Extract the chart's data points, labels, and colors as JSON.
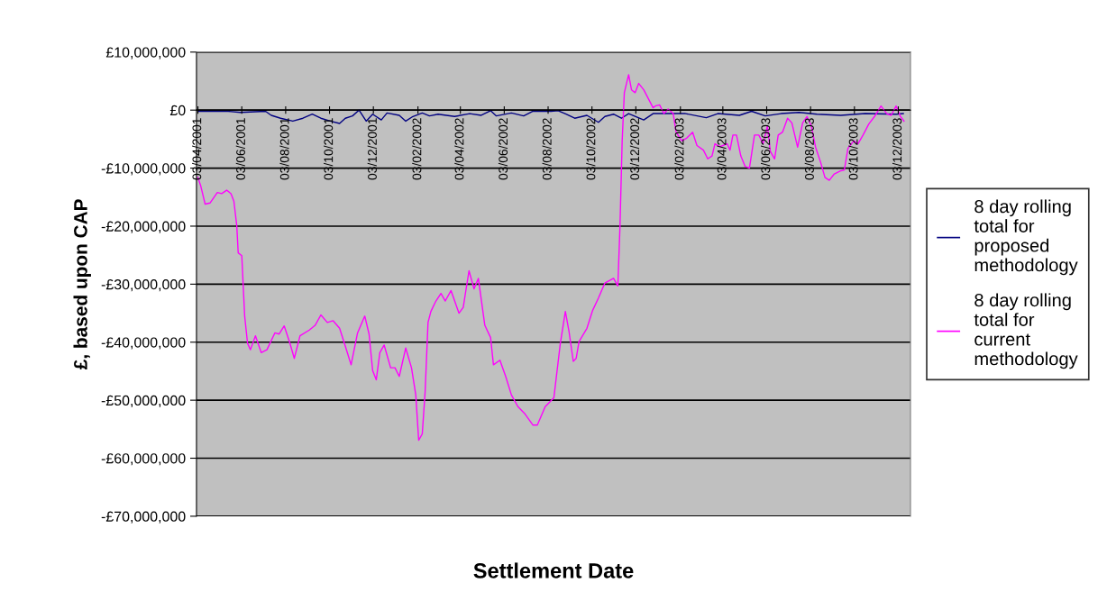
{
  "chart_data": {
    "type": "line",
    "xlabel": "Settlement Date",
    "ylabel": "£, based upon CAP",
    "legend": "right",
    "grid": "y",
    "line_style": "solid",
    "marker": "none",
    "xlim": [
      "2001-04-01",
      "2003-12-20"
    ],
    "xticks": [
      {
        "value": "2001-04-03",
        "label": "03/04/2001"
      },
      {
        "value": "2001-06-03",
        "label": "03/06/2001"
      },
      {
        "value": "2001-08-03",
        "label": "03/08/2001"
      },
      {
        "value": "2001-10-03",
        "label": "03/10/2001"
      },
      {
        "value": "2001-12-03",
        "label": "03/12/2001"
      },
      {
        "value": "2002-02-03",
        "label": "03/02/2002"
      },
      {
        "value": "2002-04-03",
        "label": "03/04/2002"
      },
      {
        "value": "2002-06-03",
        "label": "03/06/2002"
      },
      {
        "value": "2002-08-03",
        "label": "03/08/2002"
      },
      {
        "value": "2002-10-03",
        "label": "03/10/2002"
      },
      {
        "value": "2002-12-03",
        "label": "03/12/2002"
      },
      {
        "value": "2003-02-03",
        "label": "03/02/2003"
      },
      {
        "value": "2003-04-03",
        "label": "03/04/2003"
      },
      {
        "value": "2003-06-03",
        "label": "03/06/2003"
      },
      {
        "value": "2003-08-03",
        "label": "03/08/2003"
      },
      {
        "value": "2003-10-03",
        "label": "03/10/2003"
      },
      {
        "value": "2003-12-03",
        "label": "03/12/2003"
      }
    ],
    "ylim": [
      -70000000,
      10000000
    ],
    "yticks": [
      {
        "value": 10000000,
        "label": "£10,000,000"
      },
      {
        "value": 0,
        "label": "£0"
      },
      {
        "value": -10000000,
        "label": "-£10,000,000"
      },
      {
        "value": -20000000,
        "label": "-£20,000,000"
      },
      {
        "value": -30000000,
        "label": "-£30,000,000"
      },
      {
        "value": -40000000,
        "label": "-£40,000,000"
      },
      {
        "value": -50000000,
        "label": "-£50,000,000"
      },
      {
        "value": -60000000,
        "label": "-£60,000,000"
      },
      {
        "value": -70000000,
        "label": "-£70,000,000"
      }
    ],
    "series": [
      {
        "name": "8 day rolling total for proposed methodology",
        "color": "#000080",
        "x": [
          "2001-04-03",
          "2001-05-15",
          "2001-06-01",
          "2001-07-06",
          "2001-07-14",
          "2001-07-27",
          "2001-08-13",
          "2001-08-27",
          "2001-09-09",
          "2001-09-21",
          "2001-10-04",
          "2001-10-17",
          "2001-10-25",
          "2001-11-04",
          "2001-11-13",
          "2001-11-23",
          "2001-12-02",
          "2001-12-14",
          "2001-12-22",
          "2002-01-08",
          "2002-01-17",
          "2002-01-27",
          "2002-02-09",
          "2002-02-19",
          "2002-03-03",
          "2002-03-26",
          "2002-04-16",
          "2002-05-02",
          "2002-05-15",
          "2002-05-23",
          "2002-06-13",
          "2002-06-30",
          "2002-07-13",
          "2002-08-07",
          "2002-08-17",
          "2002-08-28",
          "2002-09-09",
          "2002-09-26",
          "2002-10-12",
          "2002-10-21",
          "2002-11-02",
          "2002-11-13",
          "2002-11-23",
          "2002-12-14",
          "2002-12-27",
          "2003-01-17",
          "2003-02-10",
          "2003-03-11",
          "2003-03-27",
          "2003-04-26",
          "2003-05-13",
          "2003-06-01",
          "2003-06-23",
          "2003-07-18",
          "2003-08-12",
          "2003-09-14",
          "2003-10-18",
          "2003-11-30",
          "2003-12-10"
        ],
        "values": [
          -200000,
          -200000,
          -400000,
          -200000,
          -900000,
          -1400000,
          -1900000,
          -1400000,
          -700000,
          -1400000,
          -1900000,
          -2300000,
          -1400000,
          -1000000,
          0,
          -1900000,
          -700000,
          -1700000,
          -500000,
          -900000,
          -1900000,
          -1100000,
          -500000,
          -1000000,
          -700000,
          -1100000,
          -600000,
          -900000,
          -100000,
          -1000000,
          -500000,
          -1000000,
          -200000,
          -200000,
          -100000,
          -700000,
          -1400000,
          -900000,
          -2100000,
          -1100000,
          -700000,
          -1400000,
          -600000,
          -1700000,
          -600000,
          -600000,
          -600000,
          -1300000,
          -600000,
          -900000,
          -200000,
          -1000000,
          -600000,
          -400000,
          -700000,
          -900000,
          -600000,
          -700000,
          -600000
        ]
      },
      {
        "name": "8 day rolling total for current methodology",
        "color": "#ff00ff",
        "x": [
          "2001-04-03",
          "2001-04-07",
          "2001-04-13",
          "2001-04-20",
          "2001-04-30",
          "2001-05-06",
          "2001-05-13",
          "2001-05-19",
          "2001-05-23",
          "2001-05-27",
          "2001-05-29",
          "2001-06-03",
          "2001-06-07",
          "2001-06-11",
          "2001-06-15",
          "2001-06-22",
          "2001-06-30",
          "2001-07-08",
          "2001-07-19",
          "2001-07-25",
          "2001-08-01",
          "2001-08-09",
          "2001-08-15",
          "2001-08-23",
          "2001-09-05",
          "2001-09-13",
          "2001-09-21",
          "2001-09-30",
          "2001-10-08",
          "2001-10-17",
          "2001-10-25",
          "2001-11-02",
          "2001-11-11",
          "2001-11-21",
          "2001-11-27",
          "2001-12-02",
          "2001-12-07",
          "2001-12-12",
          "2001-12-18",
          "2001-12-27",
          "2002-01-02",
          "2002-01-08",
          "2002-01-17",
          "2002-01-25",
          "2002-01-31",
          "2002-02-04",
          "2002-02-09",
          "2002-02-13",
          "2002-02-17",
          "2002-02-21",
          "2002-02-28",
          "2002-03-07",
          "2002-03-13",
          "2002-03-21",
          "2002-04-01",
          "2002-04-07",
          "2002-04-11",
          "2002-04-15",
          "2002-04-22",
          "2002-04-28",
          "2002-05-07",
          "2002-05-15",
          "2002-05-19",
          "2002-05-28",
          "2002-06-05",
          "2002-06-13",
          "2002-06-22",
          "2002-07-02",
          "2002-07-13",
          "2002-07-19",
          "2002-07-30",
          "2002-08-11",
          "2002-08-20",
          "2002-08-27",
          "2002-09-01",
          "2002-09-07",
          "2002-09-11",
          "2002-09-15",
          "2002-09-26",
          "2002-10-04",
          "2002-10-12",
          "2002-10-21",
          "2002-11-02",
          "2002-11-08",
          "2002-11-11",
          "2002-11-14",
          "2002-11-17",
          "2002-11-23",
          "2002-11-27",
          "2002-12-02",
          "2002-12-07",
          "2002-12-14",
          "2002-12-27",
          "2002-12-30",
          "2003-01-05",
          "2003-01-11",
          "2003-01-17",
          "2003-01-24",
          "2003-01-28",
          "2003-02-05",
          "2003-02-12",
          "2003-02-20",
          "2003-02-26",
          "2003-03-07",
          "2003-03-13",
          "2003-03-19",
          "2003-03-23",
          "2003-03-30",
          "2003-04-09",
          "2003-04-13",
          "2003-04-17",
          "2003-04-22",
          "2003-04-28",
          "2003-05-04",
          "2003-05-10",
          "2003-05-17",
          "2003-05-23",
          "2003-05-29",
          "2003-06-04",
          "2003-06-08",
          "2003-06-14",
          "2003-06-19",
          "2003-06-25",
          "2003-07-02",
          "2003-07-08",
          "2003-07-16",
          "2003-07-23",
          "2003-07-29",
          "2003-08-04",
          "2003-08-10",
          "2003-08-17",
          "2003-08-23",
          "2003-08-29",
          "2003-09-05",
          "2003-09-13",
          "2003-09-19",
          "2003-09-24",
          "2003-10-02",
          "2003-10-08",
          "2003-10-15",
          "2003-10-23",
          "2003-10-31",
          "2003-11-09",
          "2003-11-17",
          "2003-11-23",
          "2003-11-30",
          "2003-12-06",
          "2003-12-11"
        ],
        "values": [
          -11600000,
          -13100000,
          -16200000,
          -16000000,
          -14200000,
          -14400000,
          -13800000,
          -14400000,
          -15700000,
          -19900000,
          -24600000,
          -25100000,
          -35500000,
          -40200000,
          -41300000,
          -38900000,
          -41800000,
          -41300000,
          -38400000,
          -38600000,
          -37200000,
          -40200000,
          -42800000,
          -38900000,
          -37900000,
          -37100000,
          -35300000,
          -36600000,
          -36300000,
          -37600000,
          -40700000,
          -43900000,
          -38400000,
          -35500000,
          -38600000,
          -44900000,
          -46500000,
          -41800000,
          -40500000,
          -44400000,
          -44400000,
          -45900000,
          -41000000,
          -44400000,
          -49100000,
          -56900000,
          -55800000,
          -48500000,
          -36600000,
          -34700000,
          -32900000,
          -31600000,
          -32900000,
          -31100000,
          -35000000,
          -34000000,
          -30800000,
          -27700000,
          -30800000,
          -29000000,
          -37100000,
          -39200000,
          -43900000,
          -43100000,
          -45900000,
          -49100000,
          -51100000,
          -52400000,
          -54300000,
          -54300000,
          -51100000,
          -49600000,
          -40200000,
          -34700000,
          -38100000,
          -43300000,
          -42800000,
          -39900000,
          -37600000,
          -34500000,
          -32400000,
          -29800000,
          -29000000,
          -30300000,
          -19900000,
          -5300000,
          3000000,
          6100000,
          3500000,
          3000000,
          4600000,
          3500000,
          400000,
          700000,
          900000,
          -600000,
          200000,
          -600000,
          -3800000,
          -5300000,
          -4800000,
          -3800000,
          -6100000,
          -6900000,
          -8400000,
          -7900000,
          -5800000,
          -6300000,
          -5800000,
          -6900000,
          -4300000,
          -4300000,
          -7900000,
          -9700000,
          -10000000,
          -4300000,
          -4300000,
          -5800000,
          -2700000,
          -7100000,
          -8400000,
          -4300000,
          -3800000,
          -1400000,
          -2200000,
          -6400000,
          -2200000,
          -1100000,
          -2700000,
          -6400000,
          -9000000,
          -11600000,
          -12100000,
          -11000000,
          -10500000,
          -10300000,
          -6600000,
          -5300000,
          -5800000,
          -4300000,
          -2400000,
          -1100000,
          700000,
          -600000,
          -900000,
          700000,
          -1100000,
          -1900000
        ]
      }
    ]
  }
}
